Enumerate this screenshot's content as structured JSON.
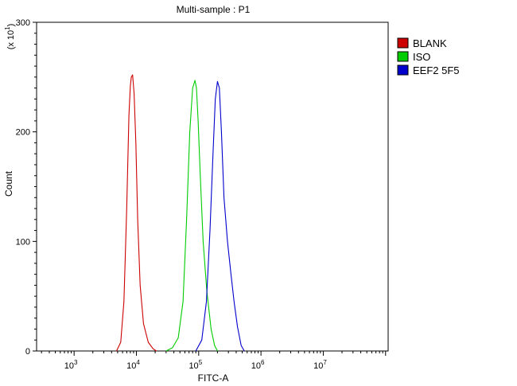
{
  "chart_data": {
    "type": "line",
    "title": "Multi-sample : P1",
    "xlabel": "FITC-A",
    "ylabel": "Count",
    "y_multiplier_label": "(x 10",
    "y_multiplier_exp": "1",
    "x_scale": "log",
    "xlim": [
      250,
      110000000
    ],
    "ylim": [
      0,
      300
    ],
    "x_ticks": [
      {
        "value": 1000,
        "base": "10",
        "exp": "3"
      },
      {
        "value": 10000,
        "base": "10",
        "exp": "4"
      },
      {
        "value": 100000,
        "base": "10",
        "exp": "5"
      },
      {
        "value": 1000000,
        "base": "10",
        "exp": "6"
      },
      {
        "value": 10000000,
        "base": "10",
        "exp": "7"
      }
    ],
    "y_ticks": [
      {
        "value": 0,
        "label": "0"
      },
      {
        "value": 100,
        "label": "100"
      },
      {
        "value": 200,
        "label": "200"
      },
      {
        "value": 300,
        "label": "300"
      }
    ],
    "legend_position": "top-right",
    "grid": false,
    "series": [
      {
        "name": "BLANK",
        "color": "#cc0000",
        "x": [
          4800,
          5600,
          6300,
          7000,
          7600,
          8000,
          8300,
          8700,
          9200,
          9800,
          10500,
          11500,
          13000,
          15500,
          18500,
          21000
        ],
        "y": [
          0,
          8,
          45,
          130,
          215,
          242,
          250,
          252,
          235,
          190,
          120,
          60,
          25,
          8,
          2,
          0
        ]
      },
      {
        "name": "ISO",
        "color": "#00cc00",
        "x": [
          30000,
          38000,
          47000,
          56000,
          64000,
          72000,
          80000,
          87000,
          92000,
          98000,
          106000,
          118000,
          135000,
          158000,
          180000,
          200000
        ],
        "y": [
          0,
          3,
          12,
          45,
          120,
          200,
          240,
          247,
          240,
          210,
          160,
          100,
          55,
          20,
          5,
          0
        ]
      },
      {
        "name": "EEF2 5F5",
        "color": "#0000cc",
        "x": [
          90000,
          112000,
          133000,
          152000,
          170000,
          185000,
          200000,
          215000,
          232000,
          255000,
          290000,
          330000,
          370000,
          420000,
          480000,
          540000
        ],
        "y": [
          0,
          10,
          45,
          110,
          180,
          230,
          246,
          240,
          200,
          140,
          100,
          70,
          45,
          22,
          5,
          0
        ]
      }
    ]
  }
}
